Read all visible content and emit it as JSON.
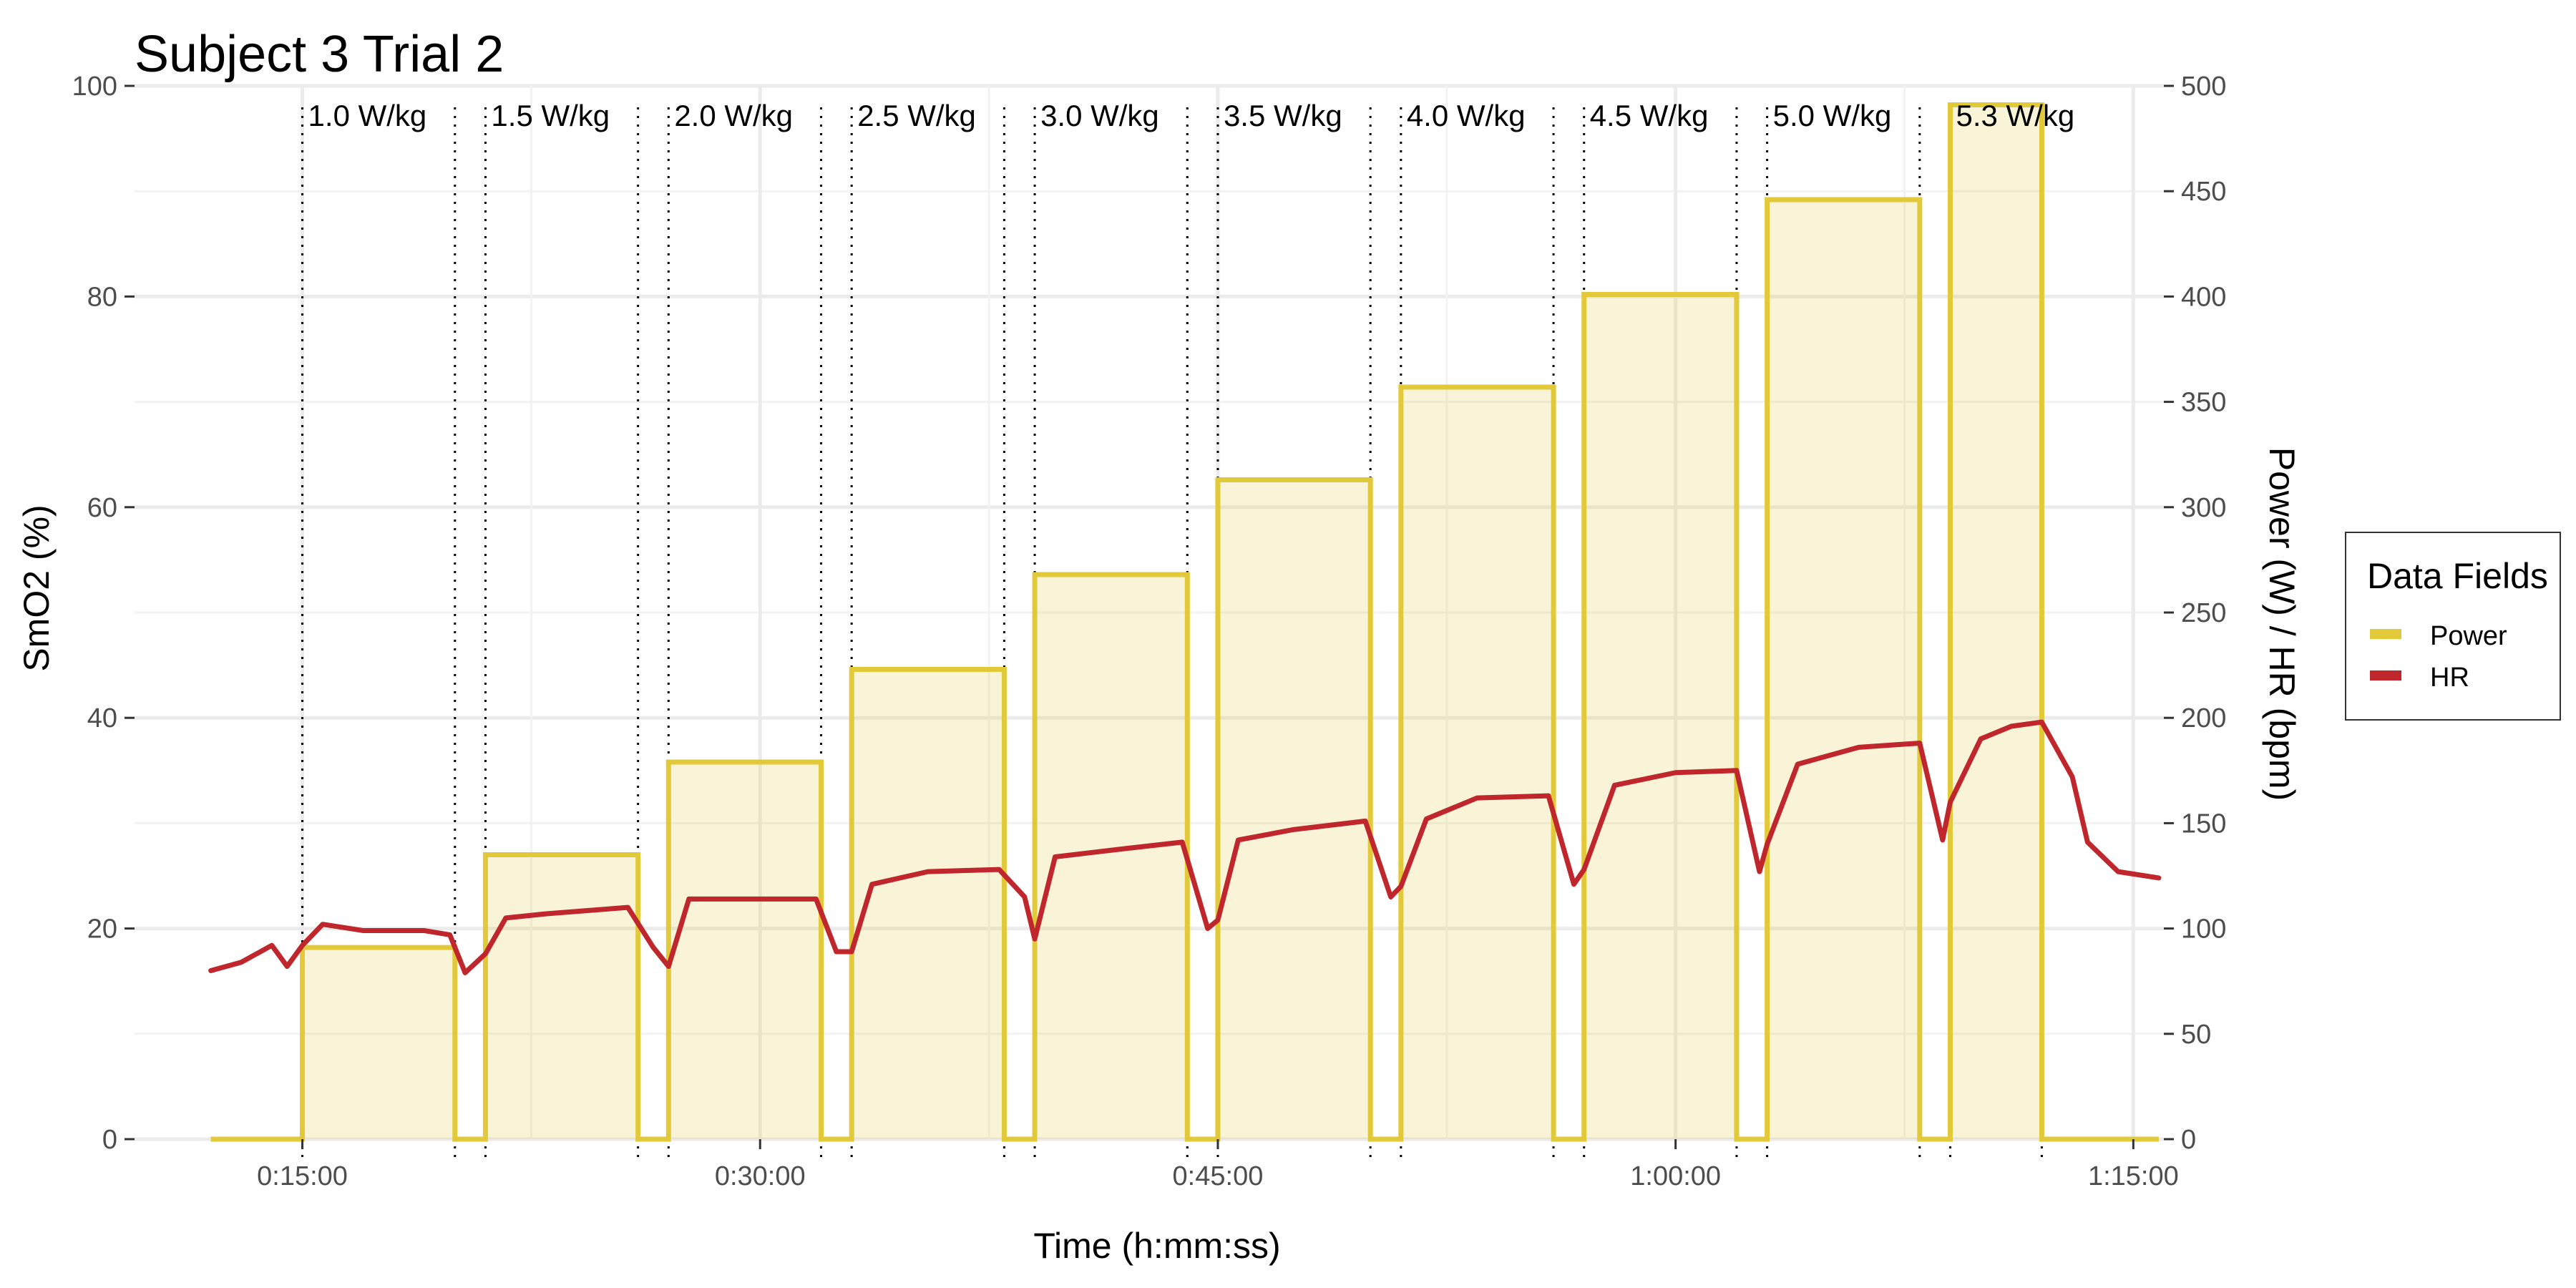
{
  "chart_data": {
    "type": "line",
    "title": "Subject 3 Trial 2",
    "xlabel": "Time (h:mm:ss)",
    "ylabel_left": "SmO2 (%)",
    "ylabel_right": "Power (W) / HR (bpm)",
    "x_unit": "h:mm:ss",
    "xlim": [
      "0:09:30",
      "1:16:00"
    ],
    "x_ticks": [
      "0:15:00",
      "0:30:00",
      "0:45:00",
      "1:00:00",
      "1:15:00"
    ],
    "ylim_left": [
      0,
      100
    ],
    "y_ticks_left": [
      "0",
      "20",
      "40",
      "60",
      "80",
      "100"
    ],
    "ylim_right": [
      0,
      500
    ],
    "y_ticks_right": [
      "0",
      "50",
      "100",
      "150",
      "200",
      "250",
      "300",
      "350",
      "400",
      "450",
      "500"
    ],
    "grid": true,
    "legend": {
      "title": "Data Fields",
      "position": "right",
      "entries": [
        {
          "name": "Power",
          "color": "#e2c93a"
        },
        {
          "name": "HR",
          "color": "#c0272d"
        }
      ]
    },
    "stage_labels": [
      "1.0 W/kg",
      "1.5 W/kg",
      "2.0 W/kg",
      "2.5 W/kg",
      "3.0 W/kg",
      "3.5 W/kg",
      "4.0 W/kg",
      "4.5 W/kg",
      "5.0 W/kg",
      "5.3 W/kg"
    ],
    "stage_boundaries": [
      "0:15:00",
      "0:20:00",
      "0:21:00",
      "0:26:00",
      "0:27:00",
      "0:32:00",
      "0:33:00",
      "0:38:00",
      "0:39:00",
      "0:44:00",
      "0:45:00",
      "0:50:00",
      "0:51:00",
      "0:56:00",
      "0:57:00",
      "1:02:00",
      "1:03:00",
      "1:08:00",
      "1:09:00",
      "1:12:00"
    ],
    "series": [
      {
        "name": "Power",
        "color": "#e2c93a",
        "steps": [
          {
            "start": "0:12:00",
            "end": "0:15:00",
            "value": 0
          },
          {
            "start": "0:15:00",
            "end": "0:20:00",
            "value": 91
          },
          {
            "start": "0:20:00",
            "end": "0:21:00",
            "value": 0
          },
          {
            "start": "0:21:00",
            "end": "0:26:00",
            "value": 135
          },
          {
            "start": "0:26:00",
            "end": "0:27:00",
            "value": 0
          },
          {
            "start": "0:27:00",
            "end": "0:32:00",
            "value": 179
          },
          {
            "start": "0:32:00",
            "end": "0:33:00",
            "value": 0
          },
          {
            "start": "0:33:00",
            "end": "0:38:00",
            "value": 223
          },
          {
            "start": "0:38:00",
            "end": "0:39:00",
            "value": 0
          },
          {
            "start": "0:39:00",
            "end": "0:44:00",
            "value": 268
          },
          {
            "start": "0:44:00",
            "end": "0:45:00",
            "value": 0
          },
          {
            "start": "0:45:00",
            "end": "0:50:00",
            "value": 313
          },
          {
            "start": "0:50:00",
            "end": "0:51:00",
            "value": 0
          },
          {
            "start": "0:51:00",
            "end": "0:56:00",
            "value": 357
          },
          {
            "start": "0:56:00",
            "end": "0:57:00",
            "value": 0
          },
          {
            "start": "0:57:00",
            "end": "1:02:00",
            "value": 401
          },
          {
            "start": "1:02:00",
            "end": "1:03:00",
            "value": 0
          },
          {
            "start": "1:03:00",
            "end": "1:08:00",
            "value": 446
          },
          {
            "start": "1:08:00",
            "end": "1:09:00",
            "value": 0
          },
          {
            "start": "1:09:00",
            "end": "1:12:00",
            "value": 491
          },
          {
            "start": "1:12:00",
            "end": "1:15:50",
            "value": 0
          }
        ]
      },
      {
        "name": "HR",
        "color": "#c0272d",
        "x": [
          "0:12:00",
          "0:13:00",
          "0:14:00",
          "0:14:30",
          "0:15:00",
          "0:15:40",
          "0:17:00",
          "0:19:00",
          "0:19:50",
          "0:20:20",
          "0:21:00",
          "0:21:40",
          "0:23:00",
          "0:25:40",
          "0:26:30",
          "0:27:00",
          "0:27:40",
          "0:30:00",
          "0:31:50",
          "0:32:30",
          "0:33:00",
          "0:33:40",
          "0:35:30",
          "0:37:50",
          "0:38:40",
          "0:39:00",
          "0:39:40",
          "0:42:00",
          "0:43:50",
          "0:44:40",
          "0:45:00",
          "0:45:40",
          "0:47:30",
          "0:49:50",
          "0:50:40",
          "0:51:00",
          "0:51:50",
          "0:53:30",
          "0:55:50",
          "0:56:40",
          "0:57:00",
          "0:58:00",
          "1:00:00",
          "1:02:00",
          "1:02:45",
          "1:03:00",
          "1:04:00",
          "1:06:00",
          "1:08:00",
          "1:08:45",
          "1:09:00",
          "1:10:00",
          "1:11:00",
          "1:12:00",
          "1:13:00",
          "1:13:30",
          "1:14:30",
          "1:15:50"
        ],
        "values": [
          80,
          84,
          92,
          82,
          92,
          102,
          99,
          99,
          97,
          79,
          88,
          105,
          107,
          110,
          91,
          82,
          114,
          114,
          114,
          89,
          89,
          121,
          127,
          128,
          115,
          95,
          134,
          138,
          141,
          100,
          104,
          142,
          147,
          151,
          115,
          120,
          152,
          162,
          163,
          121,
          128,
          168,
          174,
          175,
          127,
          140,
          178,
          186,
          188,
          142,
          160,
          190,
          196,
          198,
          172,
          141,
          127,
          124
        ]
      }
    ]
  }
}
